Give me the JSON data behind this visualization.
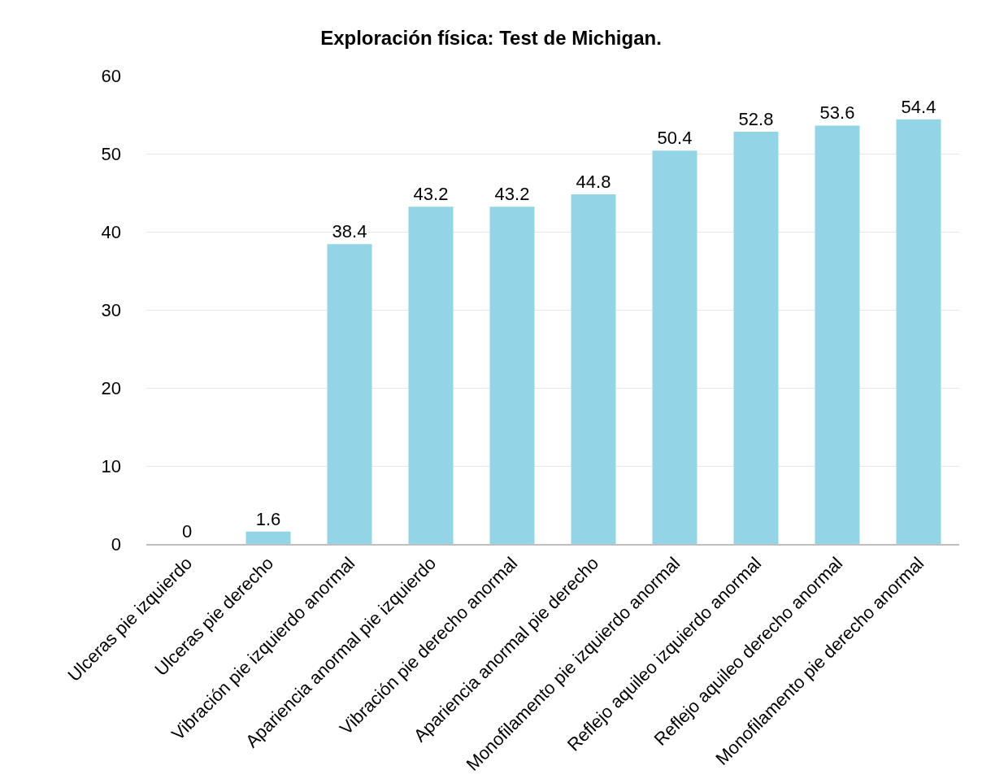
{
  "chart_data": {
    "type": "bar",
    "title": "Exploración física: Test de Michigan.",
    "categories": [
      "Ulceras pie izquierdo",
      "Ulceras pie derecho",
      "Vibración pie izquierdo anormal",
      "Apariencia anormal pie izquierdo",
      "Vibración pie derecho anormal",
      "Apariencia anormal pie derecho",
      "Monofilamento pie izquierdo anormal",
      "Reflejo aquileo izquierdo anormal",
      "Reflejo aquileo derecho anormal",
      "Monofilamento pie derecho anormal"
    ],
    "values": [
      0,
      1.6,
      38.4,
      43.2,
      43.2,
      44.8,
      50.4,
      52.8,
      53.6,
      54.4
    ],
    "color": "#93d5e6",
    "ylim": [
      0,
      60
    ],
    "yticks": [
      0,
      10,
      20,
      30,
      40,
      50,
      60
    ],
    "grid": "y",
    "data_labels": true,
    "legend": false
  }
}
